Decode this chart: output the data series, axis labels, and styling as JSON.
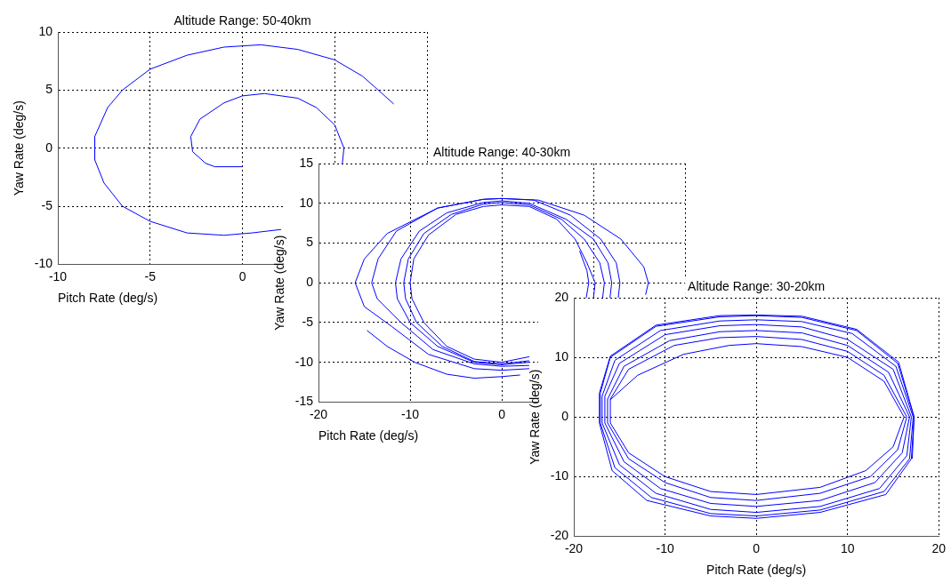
{
  "chart_data": [
    {
      "type": "line",
      "title": "Altitude Range: 50-40km",
      "xlabel": "Pitch Rate (deg/s)",
      "ylabel": "Yaw Rate (deg/s)",
      "xlim": [
        -10,
        10
      ],
      "ylim": [
        -10,
        10
      ],
      "xticks": [
        -10,
        -5,
        0,
        {
          "value": 5,
          "label": null
        },
        {
          "value": 10,
          "label": null
        }
      ],
      "yticks": [
        -10,
        -5,
        0,
        5,
        10
      ],
      "grid": true,
      "marker": "none",
      "line_style": "solid",
      "series": [
        {
          "color": "#0000ff",
          "x": [
            8.2,
            7.5,
            6.5,
            5,
            3,
            1,
            -1,
            -3,
            -5,
            -6.5,
            -7.3,
            -8,
            -8,
            -7.5,
            -6.5,
            -5,
            -3,
            -1,
            0.5,
            2.1,
            4.1,
            5,
            5.4,
            5.5,
            5,
            4,
            3,
            1.2,
            0,
            -1,
            -2.3,
            -2.8,
            -2.7,
            -2,
            -1.5,
            0
          ],
          "values": [
            3.8,
            4.8,
            6.2,
            7.6,
            8.5,
            8.9,
            8.7,
            8,
            6.8,
            5,
            3.5,
            1,
            -1,
            -3,
            -5,
            -6.3,
            -7.3,
            -7.5,
            -7.3,
            -7,
            null,
            null,
            -1.5,
            0,
            2,
            3.5,
            4.3,
            4.7,
            4.5,
            3.9,
            2.5,
            1,
            -0.3,
            -1.3,
            -1.6,
            -1.6
          ]
        }
      ]
    },
    {
      "type": "line",
      "title": "Altitude Range: 40-30km",
      "xlabel": "Pitch Rate (deg/s)",
      "ylabel": "Yaw Rate (deg/s)",
      "xlim": [
        -20,
        20
      ],
      "ylim": [
        -15,
        15
      ],
      "xticks": [
        -20,
        -10,
        0,
        {
          "value": 10,
          "label": null
        },
        {
          "value": 20,
          "label": null
        }
      ],
      "yticks": [
        -15,
        -10,
        -5,
        0,
        5,
        10,
        15
      ],
      "grid": true,
      "marker": "none",
      "line_style": "solid",
      "series": [
        {
          "color": "#0000ff",
          "x": [
            8.5,
            9.3,
            9.5,
            9.2,
            8.5,
            6,
            3,
            0,
            -3,
            -6,
            -8.5,
            -9.8,
            -10,
            -9.6,
            -8,
            -5,
            -2,
            0,
            3,
            6,
            8,
            9.3,
            10.2,
            10,
            9,
            6,
            3,
            0,
            -3,
            -6.5,
            -9.3,
            -10.5,
            -10.7,
            -10.2,
            -8.5,
            -5.5,
            -2,
            0,
            3,
            6.5,
            9,
            10.7,
            11.2,
            11,
            9,
            6.5,
            3,
            0,
            -3,
            -7,
            -10,
            -11.4,
            -11.6,
            -11,
            -9,
            -6,
            -2,
            0,
            3,
            7,
            10,
            11.6,
            12,
            11.8,
            9,
            7,
            3,
            0,
            -3,
            -7.5,
            -11,
            -13.6,
            -14.2,
            -13.5,
            -11.5,
            -7,
            -2,
            0,
            3.5,
            7.5,
            10.8,
            12.5,
            12.9,
            12.7,
            9,
            7,
            3,
            0,
            -3,
            -8,
            -12,
            -15,
            -16,
            -15,
            -12.5,
            -7,
            -2,
            0,
            4,
            9,
            13,
            15.5,
            16,
            15.7,
            9,
            5,
            2,
            0,
            -3,
            -6,
            -9.5,
            -12.5,
            -14.7
          ],
          "values": [
            4,
            1.5,
            0,
            -2,
            null,
            null,
            -9.3,
            -10,
            -9.6,
            -8,
            -5,
            -2,
            0,
            3,
            6,
            8.6,
            9.6,
            9.8,
            9.6,
            8,
            5.5,
            2.5,
            0,
            -2,
            null,
            null,
            -9.8,
            -10.2,
            -9.9,
            -8,
            -5,
            -2,
            0,
            3,
            6.2,
            8.6,
            9.9,
            10.1,
            9.8,
            8,
            5.5,
            2.5,
            0,
            -2,
            null,
            null,
            -10,
            -10.3,
            -10,
            -8,
            -5,
            -2,
            0,
            3,
            6.5,
            8.8,
            10.1,
            10.3,
            10,
            8,
            5.5,
            2.5,
            0,
            -2,
            null,
            null,
            -10.4,
            -10.5,
            -10.2,
            -8.4,
            -5,
            -2,
            0,
            3,
            6.5,
            9.4,
            10.5,
            10.6,
            10.4,
            8.5,
            5.5,
            2.5,
            0,
            -2,
            null,
            null,
            -10.8,
            -11,
            -10.8,
            -9,
            -5.5,
            -3,
            0,
            3,
            6.2,
            9.4,
            10.5,
            10.6,
            10.4,
            8.5,
            5.5,
            2,
            0,
            -1.5,
            null,
            null,
            -11.6,
            -11.8,
            -12,
            -11.5,
            -10,
            -8,
            -6
          ]
        }
      ]
    },
    {
      "type": "line",
      "title": "Altitude Range: 30-20km",
      "xlabel": "Pitch Rate (deg/s)",
      "ylabel": "Yaw Rate (deg/s)",
      "xlim": [
        -20,
        20
      ],
      "ylim": [
        -20,
        20
      ],
      "xticks": [
        -20,
        -10,
        0,
        10,
        20
      ],
      "yticks": [
        -20,
        -10,
        0,
        10,
        20
      ],
      "grid": true,
      "marker": "none",
      "line_style": "solid",
      "series": [
        {
          "color": "#0000ff",
          "x": [
            -16,
            -13,
            -8,
            -3,
            0,
            5,
            10,
            14,
            16.2,
            15,
            12,
            7,
            0,
            -5,
            -10,
            -14,
            -16,
            -16,
            -14,
            -9,
            -4,
            0,
            5,
            10,
            14,
            16.5,
            15.5,
            12.5,
            7,
            0,
            -5,
            -10,
            -14,
            -16.3,
            -16.3,
            -14.5,
            -9.5,
            -4,
            0,
            5,
            10,
            14.5,
            16.8,
            16,
            13,
            7,
            0,
            -5,
            -10.5,
            -14.5,
            -16.6,
            -16.6,
            -15,
            -10,
            -4,
            0,
            5,
            10,
            15,
            17,
            16.5,
            13.5,
            7,
            0,
            -5,
            -11,
            -15,
            -16.9,
            -16.9,
            -15.5,
            -10.5,
            -4,
            0,
            5,
            10.5,
            15.3,
            17.2,
            16.8,
            14,
            7,
            0,
            -5,
            -11.5,
            -15.5,
            -17.1,
            -17.1,
            -16,
            -11,
            -4,
            0,
            5,
            11,
            15.5,
            17.3,
            17,
            14.2,
            7,
            0,
            -5,
            -12,
            -15.8,
            -17.2,
            -17.2,
            -16,
            -11,
            -4,
            0,
            5,
            11,
            15.6,
            17.3,
            17.1
          ],
          "values": [
            2.9,
            7,
            10.5,
            12,
            12.3,
            11.8,
            10,
            6,
            0,
            -5,
            -9,
            -11.8,
            -13,
            -12.5,
            -10,
            -6,
            -1,
            3,
            8,
            12,
            13.3,
            13.5,
            13,
            11,
            7,
            0,
            -5.5,
            -10,
            -12.8,
            -14,
            -13.5,
            -11,
            -7,
            -1,
            3,
            8.5,
            12.8,
            14.3,
            14.5,
            14.1,
            12,
            7.5,
            0,
            -6,
            -11,
            -14,
            -15,
            -14.5,
            -12,
            -7.5,
            -1,
            3.5,
            9,
            13.8,
            15.3,
            15.5,
            15.1,
            13,
            8,
            0,
            -6.5,
            -12,
            -15,
            -16,
            -15.5,
            -12.8,
            -8,
            -1,
            3.5,
            9.5,
            14.5,
            16.1,
            16.3,
            16,
            14,
            8.5,
            0,
            -7,
            -12.5,
            -15.6,
            -16.6,
            -16.2,
            -13.5,
            -8.5,
            -1,
            4,
            10,
            15.2,
            16.8,
            17,
            16.7,
            14.5,
            9,
            0,
            -7,
            -13,
            -16,
            -17,
            -16.6,
            -14,
            -9,
            -1,
            4,
            10.2,
            15.4,
            17,
            17.1,
            16.9,
            14.7,
            9.2,
            0,
            -7
          ]
        }
      ]
    }
  ]
}
